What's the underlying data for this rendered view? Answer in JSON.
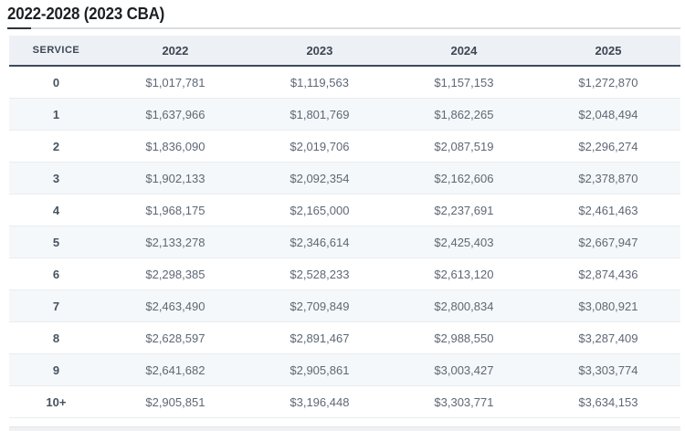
{
  "header": {
    "title": "2022-2028 (2023 CBA)"
  },
  "table": {
    "columns": [
      "SERVICE",
      "2022",
      "2023",
      "2024",
      "2025"
    ],
    "rows": [
      {
        "service": "0",
        "values": [
          "$1,017,781",
          "$1,119,563",
          "$1,157,153",
          "$1,272,870"
        ]
      },
      {
        "service": "1",
        "values": [
          "$1,637,966",
          "$1,801,769",
          "$1,862,265",
          "$2,048,494"
        ]
      },
      {
        "service": "2",
        "values": [
          "$1,836,090",
          "$2,019,706",
          "$2,087,519",
          "$2,296,274"
        ]
      },
      {
        "service": "3",
        "values": [
          "$1,902,133",
          "$2,092,354",
          "$2,162,606",
          "$2,378,870"
        ]
      },
      {
        "service": "4",
        "values": [
          "$1,968,175",
          "$2,165,000",
          "$2,237,691",
          "$2,461,463"
        ]
      },
      {
        "service": "5",
        "values": [
          "$2,133,278",
          "$2,346,614",
          "$2,425,403",
          "$2,667,947"
        ]
      },
      {
        "service": "6",
        "values": [
          "$2,298,385",
          "$2,528,233",
          "$2,613,120",
          "$2,874,436"
        ]
      },
      {
        "service": "7",
        "values": [
          "$2,463,490",
          "$2,709,849",
          "$2,800,834",
          "$3,080,921"
        ]
      },
      {
        "service": "8",
        "values": [
          "$2,628,597",
          "$2,891,467",
          "$2,988,550",
          "$3,287,409"
        ]
      },
      {
        "service": "9",
        "values": [
          "$2,641,682",
          "$2,905,861",
          "$3,003,427",
          "$3,303,774"
        ]
      },
      {
        "service": "10+",
        "values": [
          "$2,905,851",
          "$3,196,448",
          "$3,303,771",
          "$3,634,153"
        ]
      }
    ]
  },
  "colors": {
    "title_text": "#1d2023",
    "title_accent_rule": "#2e3338",
    "title_rule": "#dadde1",
    "header_bg": "#edf1f6",
    "header_text": "#3c4653",
    "header_border": "#3f4b5c",
    "row_alt_bg": "#f5f8fa",
    "row_border": "#e9ecef",
    "value_text": "#5d6876",
    "service_text": "#46535f"
  }
}
